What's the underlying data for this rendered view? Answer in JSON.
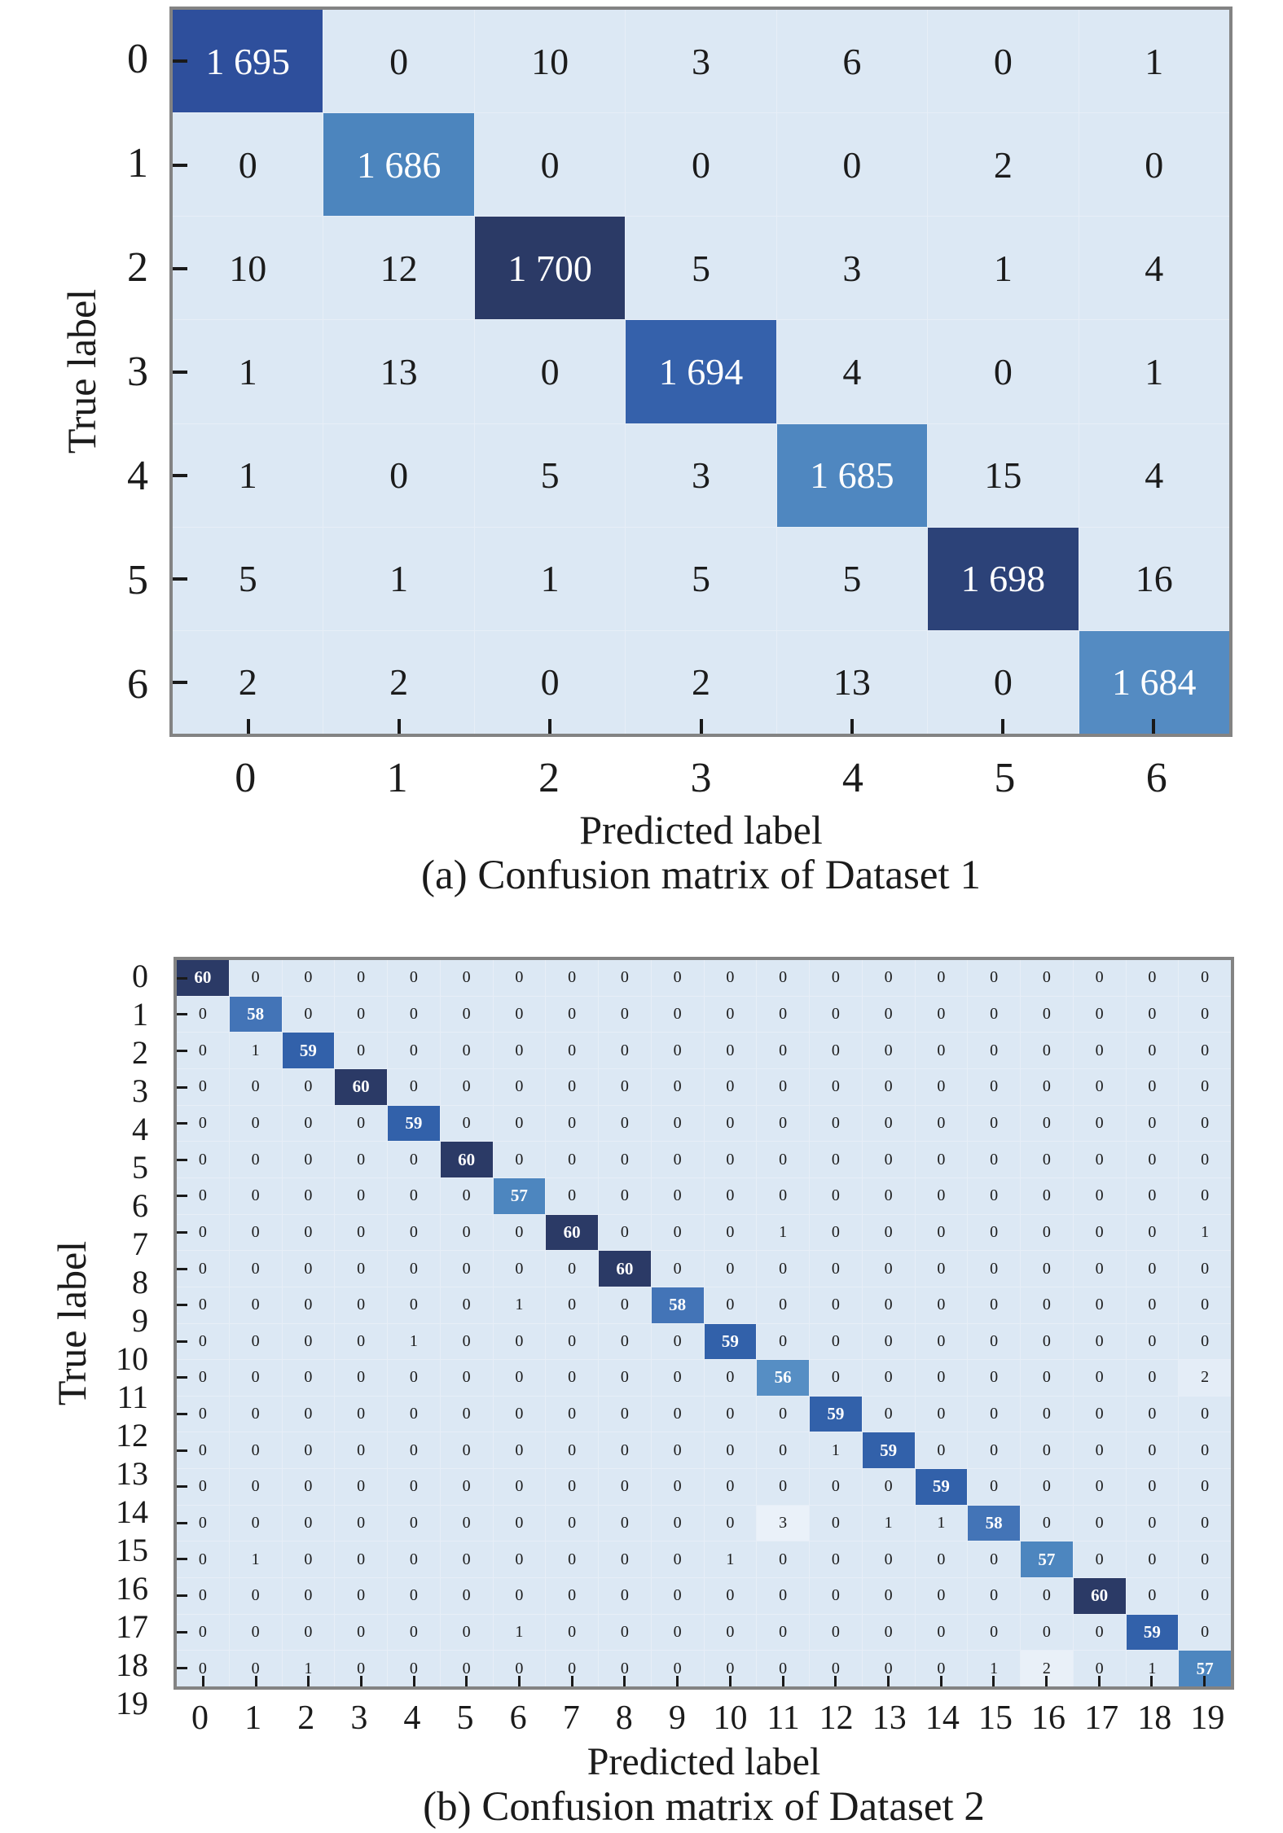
{
  "palette": {
    "cell_background": "#dce8f4",
    "grid_line": "#e7eef7",
    "axis_border": "#838383",
    "tick_color": "#1a1a1a",
    "cell_text_dark": "#1b1b1b",
    "cell_text_light": "#ffffff"
  },
  "figure_a": {
    "ylabel": "True label",
    "xlabel": "Predicted label",
    "caption": "(a) Confusion matrix of Dataset 1",
    "format_thousands": true,
    "diag_colors": [
      "#2e4f9c",
      "#4c85be",
      "#2b3a66",
      "#3561ab",
      "#4f87c0",
      "#2c4278",
      "#548bc2"
    ]
  },
  "figure_b": {
    "ylabel": "True label",
    "xlabel": "Predicted label",
    "caption": "(b) Confusion matrix of Dataset 2",
    "format_thousands": false,
    "value_colors": {
      "60": "#2b3a66",
      "59": "#3261aa",
      "58": "#4374b7",
      "57": "#4d86bf",
      "56": "#568ec4"
    },
    "special_bg": [
      {
        "row": 15,
        "col": 11,
        "color": "#eaf1f9"
      },
      {
        "row": 19,
        "col": 16,
        "color": "#e9f0f8"
      },
      {
        "row": 11,
        "col": 19,
        "color": "#e4edf7"
      }
    ]
  },
  "chart_data": [
    {
      "type": "heatmap",
      "title": "(a) Confusion matrix of Dataset 1",
      "xlabel": "Predicted label",
      "ylabel": "True label",
      "legend_position": "none",
      "grid": false,
      "x_ticks": [
        "0",
        "1",
        "2",
        "3",
        "4",
        "5",
        "6"
      ],
      "y_ticks": [
        "0",
        "1",
        "2",
        "3",
        "4",
        "5",
        "6"
      ],
      "matrix": [
        [
          1695,
          0,
          10,
          3,
          6,
          0,
          1
        ],
        [
          0,
          1686,
          0,
          0,
          0,
          2,
          0
        ],
        [
          10,
          12,
          1700,
          5,
          3,
          1,
          4
        ],
        [
          1,
          13,
          0,
          1694,
          4,
          0,
          1
        ],
        [
          1,
          0,
          5,
          3,
          1685,
          15,
          4
        ],
        [
          5,
          1,
          1,
          5,
          5,
          1698,
          16
        ],
        [
          2,
          2,
          0,
          2,
          13,
          0,
          1684
        ]
      ]
    },
    {
      "type": "heatmap",
      "title": "(b) Confusion matrix of Dataset 2",
      "xlabel": "Predicted label",
      "ylabel": "True label",
      "legend_position": "none",
      "grid": false,
      "x_ticks": [
        "0",
        "1",
        "2",
        "3",
        "4",
        "5",
        "6",
        "7",
        "8",
        "9",
        "10",
        "11",
        "12",
        "13",
        "14",
        "15",
        "16",
        "17",
        "18",
        "19"
      ],
      "y_ticks": [
        "0",
        "1",
        "2",
        "3",
        "4",
        "5",
        "6",
        "7",
        "8",
        "9",
        "10",
        "11",
        "12",
        "13",
        "14",
        "15",
        "16",
        "17",
        "18",
        "19"
      ],
      "matrix": [
        [
          60,
          0,
          0,
          0,
          0,
          0,
          0,
          0,
          0,
          0,
          0,
          0,
          0,
          0,
          0,
          0,
          0,
          0,
          0,
          0
        ],
        [
          0,
          58,
          0,
          0,
          0,
          0,
          0,
          0,
          0,
          0,
          0,
          0,
          0,
          0,
          0,
          0,
          0,
          0,
          0,
          0
        ],
        [
          0,
          1,
          59,
          0,
          0,
          0,
          0,
          0,
          0,
          0,
          0,
          0,
          0,
          0,
          0,
          0,
          0,
          0,
          0,
          0
        ],
        [
          0,
          0,
          0,
          60,
          0,
          0,
          0,
          0,
          0,
          0,
          0,
          0,
          0,
          0,
          0,
          0,
          0,
          0,
          0,
          0
        ],
        [
          0,
          0,
          0,
          0,
          59,
          0,
          0,
          0,
          0,
          0,
          0,
          0,
          0,
          0,
          0,
          0,
          0,
          0,
          0,
          0
        ],
        [
          0,
          0,
          0,
          0,
          0,
          60,
          0,
          0,
          0,
          0,
          0,
          0,
          0,
          0,
          0,
          0,
          0,
          0,
          0,
          0
        ],
        [
          0,
          0,
          0,
          0,
          0,
          0,
          57,
          0,
          0,
          0,
          0,
          0,
          0,
          0,
          0,
          0,
          0,
          0,
          0,
          0
        ],
        [
          0,
          0,
          0,
          0,
          0,
          0,
          0,
          60,
          0,
          0,
          0,
          1,
          0,
          0,
          0,
          0,
          0,
          0,
          0,
          1
        ],
        [
          0,
          0,
          0,
          0,
          0,
          0,
          0,
          0,
          60,
          0,
          0,
          0,
          0,
          0,
          0,
          0,
          0,
          0,
          0,
          0
        ],
        [
          0,
          0,
          0,
          0,
          0,
          0,
          1,
          0,
          0,
          58,
          0,
          0,
          0,
          0,
          0,
          0,
          0,
          0,
          0,
          0
        ],
        [
          0,
          0,
          0,
          0,
          1,
          0,
          0,
          0,
          0,
          0,
          59,
          0,
          0,
          0,
          0,
          0,
          0,
          0,
          0,
          0
        ],
        [
          0,
          0,
          0,
          0,
          0,
          0,
          0,
          0,
          0,
          0,
          0,
          56,
          0,
          0,
          0,
          0,
          0,
          0,
          0,
          2
        ],
        [
          0,
          0,
          0,
          0,
          0,
          0,
          0,
          0,
          0,
          0,
          0,
          0,
          59,
          0,
          0,
          0,
          0,
          0,
          0,
          0
        ],
        [
          0,
          0,
          0,
          0,
          0,
          0,
          0,
          0,
          0,
          0,
          0,
          0,
          1,
          59,
          0,
          0,
          0,
          0,
          0,
          0
        ],
        [
          0,
          0,
          0,
          0,
          0,
          0,
          0,
          0,
          0,
          0,
          0,
          0,
          0,
          0,
          59,
          0,
          0,
          0,
          0,
          0
        ],
        [
          0,
          0,
          0,
          0,
          0,
          0,
          0,
          0,
          0,
          0,
          0,
          3,
          0,
          1,
          1,
          58,
          0,
          0,
          0,
          0
        ],
        [
          0,
          1,
          0,
          0,
          0,
          0,
          0,
          0,
          0,
          0,
          1,
          0,
          0,
          0,
          0,
          0,
          57,
          0,
          0,
          0
        ],
        [
          0,
          0,
          0,
          0,
          0,
          0,
          0,
          0,
          0,
          0,
          0,
          0,
          0,
          0,
          0,
          0,
          0,
          60,
          0,
          0
        ],
        [
          0,
          0,
          0,
          0,
          0,
          0,
          1,
          0,
          0,
          0,
          0,
          0,
          0,
          0,
          0,
          0,
          0,
          0,
          59,
          0
        ],
        [
          0,
          0,
          1,
          0,
          0,
          0,
          0,
          0,
          0,
          0,
          0,
          0,
          0,
          0,
          0,
          1,
          2,
          0,
          1,
          57
        ]
      ]
    }
  ]
}
